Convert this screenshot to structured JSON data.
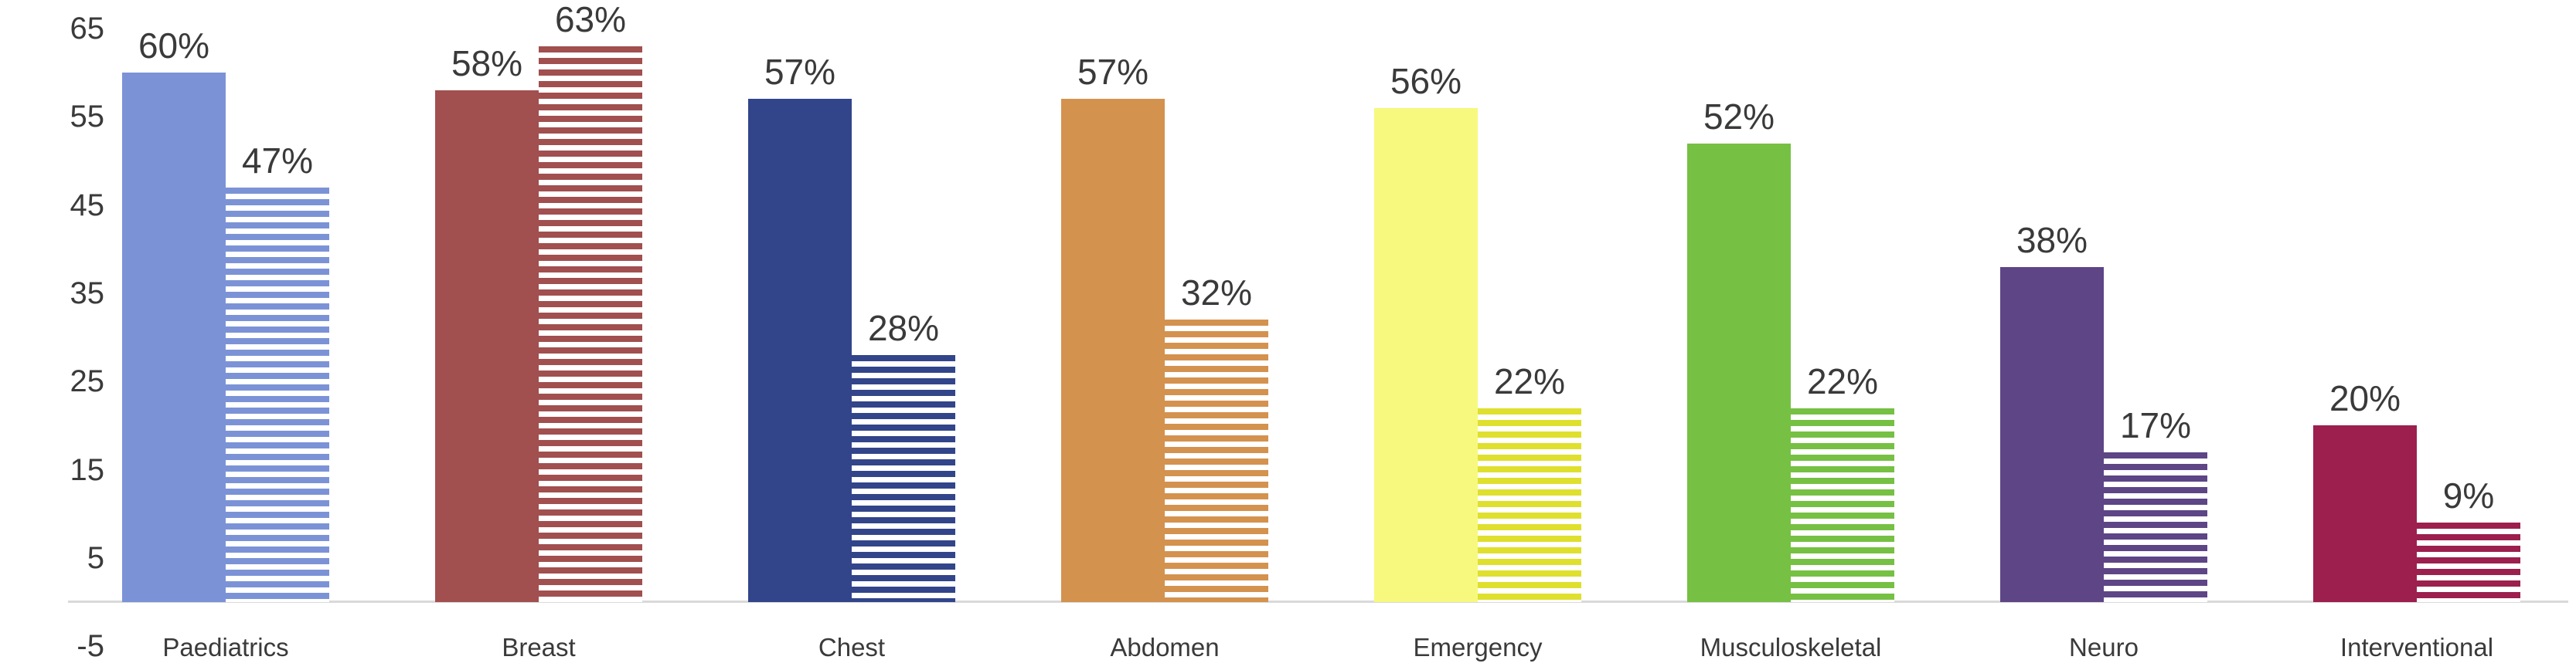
{
  "chart_data": {
    "type": "bar",
    "title": "",
    "categories": [
      "Paediatrics",
      "Breast",
      "Chest",
      "Abdomen",
      "Emergency",
      "Musculoskeletal",
      "Neuro",
      "Interventional"
    ],
    "series": [
      {
        "name": "solid",
        "values": [
          60,
          58,
          57,
          57,
          56,
          52,
          38,
          20
        ]
      },
      {
        "name": "striped",
        "values": [
          47,
          63,
          28,
          32,
          22,
          22,
          17,
          9
        ]
      }
    ],
    "data_labels": {
      "solid": [
        "60%",
        "58%",
        "57%",
        "57%",
        "56%",
        "52%",
        "38%",
        "20%"
      ],
      "striped": [
        "47%",
        "63%",
        "28%",
        "32%",
        "22%",
        "22%",
        "17%",
        "9%"
      ]
    },
    "y_tick_labels": [
      "65",
      "55",
      "45",
      "35",
      "25",
      "15",
      "5",
      "-5"
    ],
    "y_tick_values": [
      65,
      55,
      45,
      35,
      25,
      15,
      5,
      -5
    ],
    "ylim": [
      -5,
      65
    ],
    "baseline_value": 0,
    "grid": false,
    "legend_position": "none",
    "xlabel": "",
    "ylabel": "",
    "bar_pattern": [
      "solid",
      "horizontal-stripes"
    ],
    "colors": {
      "solid": [
        "#7b93d6",
        "#a14f4f",
        "#32458a",
        "#d4924f",
        "#f6f97d",
        "#76c043",
        "#5d4586",
        "#9c1f4e"
      ],
      "stripe": [
        "#7b93d6",
        "#a14f4f",
        "#32458a",
        "#d4924f",
        "#dfdf2e",
        "#76c043",
        "#5d4586",
        "#9c1f4e"
      ]
    },
    "text_color": "#3a3a3a",
    "axis_line_color": "#d9d9d9"
  }
}
